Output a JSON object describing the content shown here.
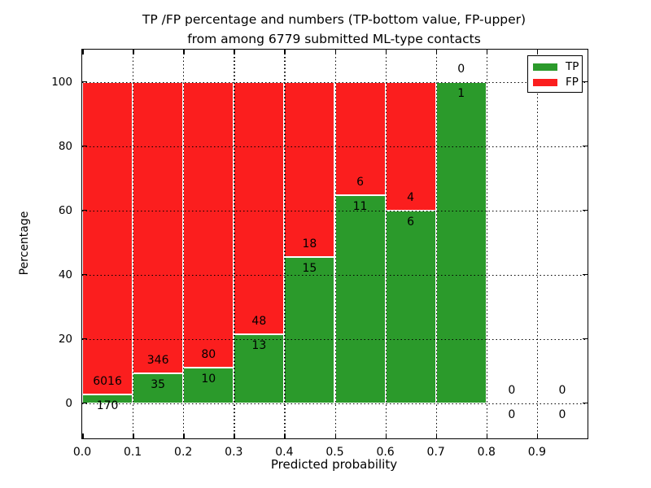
{
  "title_line1": "TP /FP percentage and numbers (TP-bottom value, FP-upper)",
  "title_line2": "from among 6779 submitted ML-type contacts",
  "axes": {
    "xlabel": "Predicted probability",
    "ylabel": "Percentage",
    "x_tick_labels": [
      "0.0",
      "0.1",
      "0.2",
      "0.3",
      "0.4",
      "0.5",
      "0.6",
      "0.7",
      "0.8",
      "0.9"
    ],
    "y_tick_labels": [
      "0",
      "20",
      "40",
      "60",
      "80",
      "100"
    ]
  },
  "legend": {
    "items": [
      {
        "label": "TP",
        "color": "#2b9a2b"
      },
      {
        "label": "FP",
        "color": "#fb1e1e"
      }
    ]
  },
  "colors": {
    "tp_green": "#2b9a2b",
    "fp_red": "#fb1e1e",
    "axis_black": "#000000",
    "background": "#ffffff"
  },
  "chart_data": {
    "type": "bar",
    "stacked": true,
    "title": "TP /FP percentage and numbers (TP-bottom value, FP-upper) from among 6779 submitted ML-type contacts",
    "xlabel": "Predicted probability",
    "ylabel": "Percentage",
    "total_contacts": 6779,
    "bin_width": 0.1,
    "bin_starts": [
      0.0,
      0.1,
      0.2,
      0.3,
      0.4,
      0.5,
      0.6,
      0.7,
      0.8,
      0.9
    ],
    "series": [
      {
        "name": "TP",
        "position": "bottom",
        "color": "#2b9a2b",
        "counts": [
          170,
          35,
          10,
          13,
          15,
          11,
          6,
          1,
          0,
          0
        ]
      },
      {
        "name": "FP",
        "position": "upper",
        "color": "#fb1e1e",
        "counts": [
          6016,
          346,
          80,
          48,
          18,
          6,
          4,
          0,
          0,
          0
        ]
      }
    ],
    "bar_total_height_percent": 100,
    "tp_percent_by_bin": [
      2.75,
      9.19,
      11.11,
      21.31,
      45.45,
      64.71,
      60.0,
      100.0,
      0,
      0
    ],
    "xlim": [
      0.0,
      1.0
    ],
    "ylim": [
      -11,
      110
    ],
    "x_ticks": [
      0.0,
      0.1,
      0.2,
      0.3,
      0.4,
      0.5,
      0.6,
      0.7,
      0.8,
      0.9
    ],
    "y_ticks": [
      0,
      20,
      40,
      60,
      80,
      100
    ],
    "grid": "dotted",
    "legend_position": "upper right"
  }
}
